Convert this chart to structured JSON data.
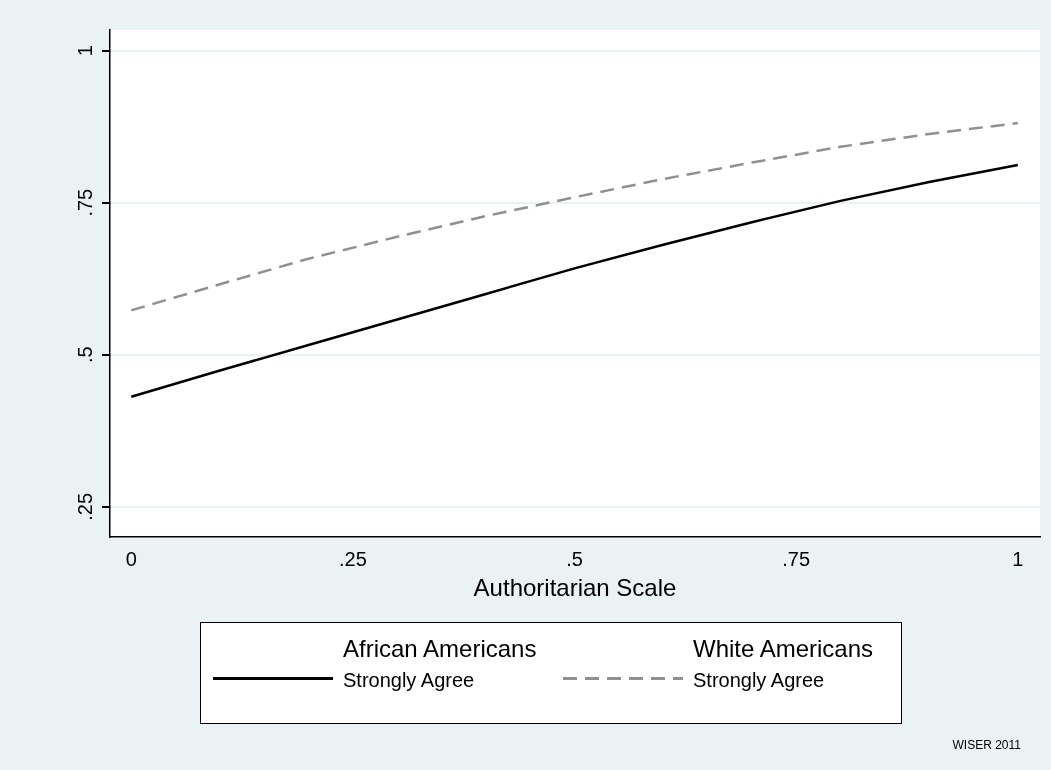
{
  "chart_data": {
    "type": "line",
    "xlabel": "Authoritarian Scale",
    "x": [
      0,
      0.1,
      0.2,
      0.3,
      0.4,
      0.5,
      0.6,
      0.7,
      0.8,
      0.9,
      1
    ],
    "series": [
      {
        "name": "African Americans\nStrongly Agree",
        "color": "#000000",
        "line_style": "solid",
        "values": [
          0.431,
          0.474,
          0.516,
          0.558,
          0.6,
          0.642,
          0.681,
          0.718,
          0.753,
          0.784,
          0.812
        ]
      },
      {
        "name": "White Americans\nStrongly Agree",
        "color": "#909090",
        "line_style": "dashed",
        "values": [
          0.573,
          0.616,
          0.658,
          0.694,
          0.728,
          0.759,
          0.789,
          0.816,
          0.842,
          0.863,
          0.881
        ]
      }
    ],
    "xlim": [
      -0.024,
      1.025
    ],
    "ylim": [
      0.2,
      1.034
    ],
    "xticks": [
      0,
      {
        "value": 0.25,
        "label": ".25"
      },
      {
        "value": 0.5,
        "label": ".5"
      },
      {
        "value": 0.75,
        "label": ".75"
      },
      1
    ],
    "yticks": [
      {
        "value": 0.25,
        "label": ".25"
      },
      {
        "value": 0.5,
        "label": ".5"
      },
      {
        "value": 0.75,
        "label": ".75"
      },
      1
    ],
    "grid": "y",
    "legend": "bottom",
    "marker": "none",
    "annotations": [
      "WISER 2011"
    ]
  }
}
